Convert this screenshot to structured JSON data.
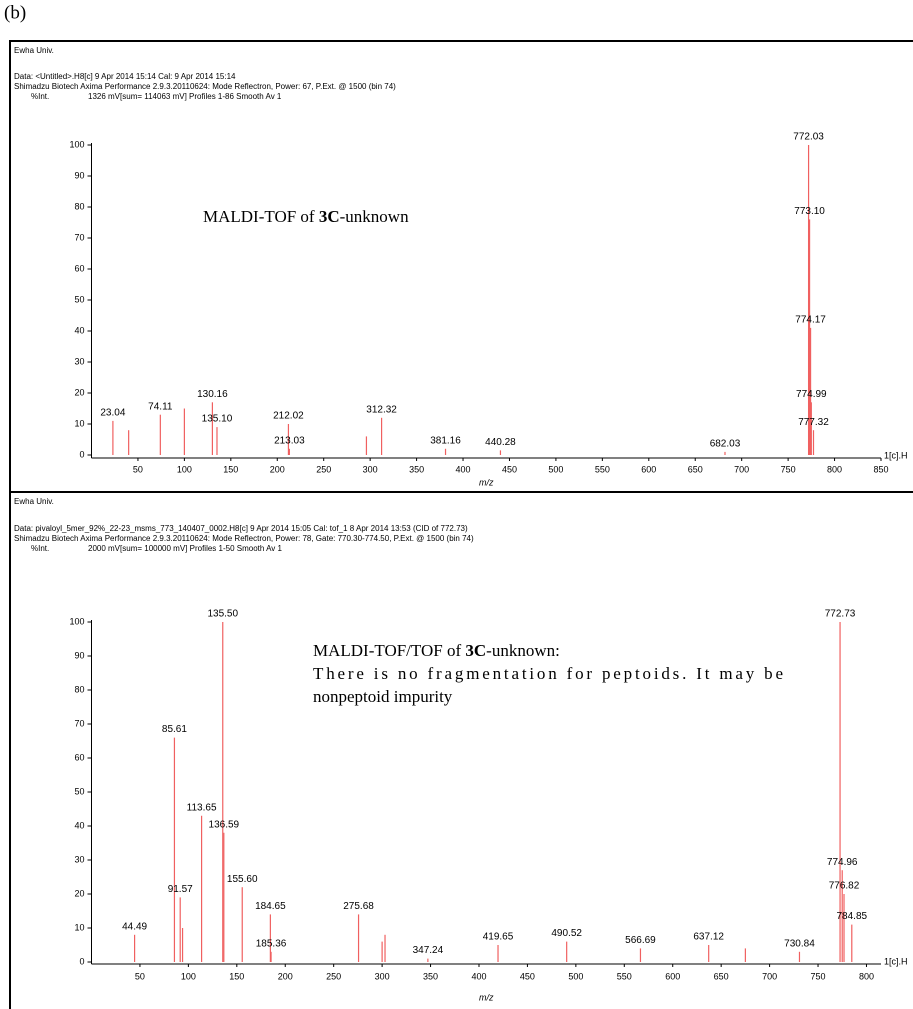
{
  "label": "(b)",
  "chart_data": [
    {
      "type": "spectrum",
      "header": [
        "Ewha Univ.",
        "Data: <Untitled>.H8[c] 9 Apr 2014 15:14 Cal: 9 Apr 2014 15:14",
        "Shimadzu Biotech Axima Performance 2.9.3.20110624: Mode Reflectron, Power: 67, P.Ext. @ 1500 (bin 74)"
      ],
      "ylabel": "%Int.",
      "intensity_info": "1326 mV[sum= 114063 mV]  Profiles 1-86 Smooth Av 1",
      "xlabel": "m/z",
      "edge_label": "1[c].H",
      "annotation": [
        [
          {
            "text": "MALDI-TOF of "
          },
          {
            "text": "3C",
            "bold": true
          },
          {
            "text": "-unknown"
          }
        ]
      ],
      "color": "#f06060",
      "x": [
        23.04,
        40,
        74.11,
        100,
        130.16,
        135.1,
        212.02,
        213.03,
        296,
        312.32,
        381.16,
        440.28,
        682.03,
        772.03,
        773.1,
        774.17,
        774.99,
        777.32
      ],
      "x_labels": [
        "23.04",
        null,
        "74.11",
        null,
        "130.16",
        "135.10",
        "212.02",
        "213.03",
        null,
        "312.32",
        "381.16",
        "440.28",
        "682.03",
        "772.03",
        "773.10",
        "774.17",
        "774.99",
        "777.32"
      ],
      "values": [
        11,
        8,
        13,
        15,
        17,
        9,
        10,
        2,
        6,
        12,
        2,
        1.5,
        1,
        100,
        76,
        41,
        17,
        8
      ],
      "xlim": [
        0,
        850
      ],
      "ylim": [
        0,
        100
      ],
      "xticks": [
        50,
        100,
        150,
        200,
        250,
        300,
        350,
        400,
        450,
        500,
        550,
        600,
        650,
        700,
        750,
        800,
        850
      ],
      "yticks": [
        0,
        10,
        20,
        30,
        40,
        50,
        60,
        70,
        80,
        90,
        100
      ]
    },
    {
      "type": "spectrum",
      "header": [
        "Ewha Univ.",
        "Data: pivaloyl_5mer_92%_22-23_msms_773_140407_0002.H8[c] 9 Apr 2014 15:05 Cal: tof_1 8 Apr 2014 13:53 (CID of  772.73)",
        "Shimadzu Biotech Axima Performance 2.9.3.20110624: Mode Reflectron, Power: 78, Gate: 770.30-774.50, P.Ext. @ 1500 (bin 74)"
      ],
      "ylabel": "%Int.",
      "intensity_info": "2000 mV[sum= 100000 mV]  Profiles 1-50 Smooth Av 1",
      "xlabel": "m/z",
      "edge_label": "1[c].H",
      "annotation": [
        [
          {
            "text": "MALDI-TOF/TOF of "
          },
          {
            "text": "3C",
            "bold": true
          },
          {
            "text": "-unknown:"
          }
        ],
        [
          {
            "text": "There is no fragmentation for peptoids. It may be"
          }
        ],
        [
          {
            "text": "nonpeptoid impurity"
          }
        ]
      ],
      "color": "#f06060",
      "x": [
        44.49,
        85.61,
        91.57,
        94,
        113.65,
        135.5,
        136.59,
        155.6,
        184.65,
        185.36,
        275.68,
        300,
        303,
        347.24,
        419.65,
        490.52,
        566.69,
        637.12,
        675,
        730.84,
        772.73,
        774.96,
        776.82,
        784.85
      ],
      "x_labels": [
        "44.49",
        "85.61",
        "91.57",
        null,
        "113.65",
        "135.50",
        "136.59",
        "155.60",
        "184.65",
        "185.36",
        "275.68",
        null,
        null,
        "347.24",
        "419.65",
        "490.52",
        "566.69",
        "637.12",
        null,
        "730.84",
        "772.73",
        "774.96",
        "776.82",
        "784.85"
      ],
      "values": [
        8,
        66,
        19,
        10,
        43,
        100,
        38,
        22,
        14,
        3,
        14,
        6,
        8,
        1,
        5,
        6,
        4,
        5,
        4,
        3,
        100,
        27,
        20,
        11
      ],
      "xlim": [
        0,
        815
      ],
      "ylim": [
        0,
        100
      ],
      "xticks": [
        50,
        100,
        150,
        200,
        250,
        300,
        350,
        400,
        450,
        500,
        550,
        600,
        650,
        700,
        750,
        800
      ],
      "yticks": [
        0,
        10,
        20,
        30,
        40,
        50,
        60,
        70,
        80,
        90,
        100
      ]
    }
  ]
}
